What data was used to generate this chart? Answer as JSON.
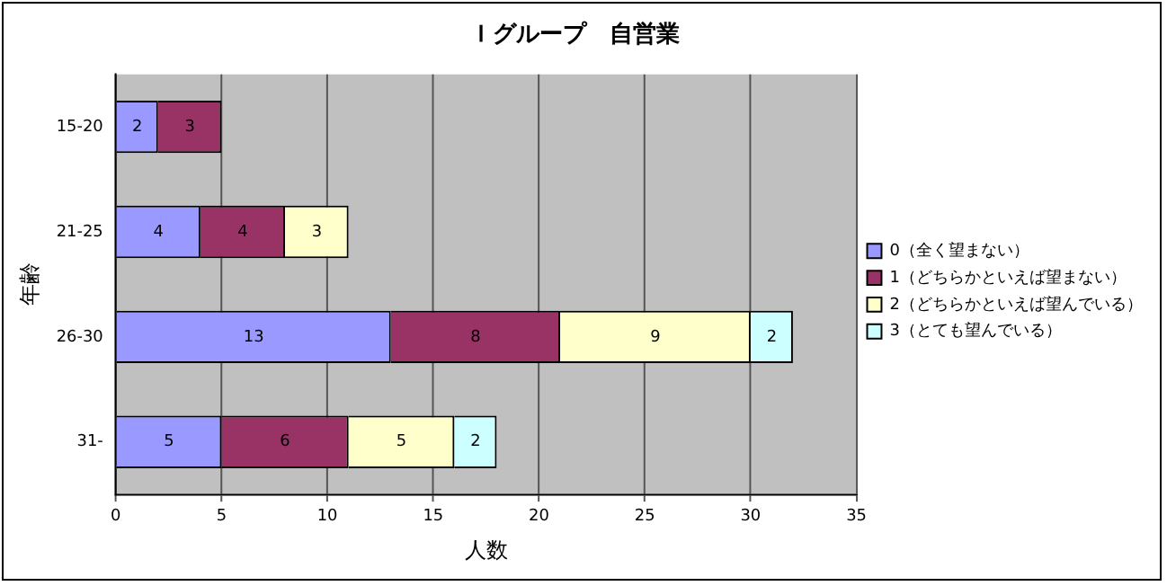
{
  "chart_data": {
    "type": "bar",
    "orientation": "horizontal",
    "stacked": true,
    "title": "Ｉグループ　自営業",
    "xlabel": "人数",
    "ylabel": "年齢",
    "categories": [
      "15-20",
      "21-25",
      "26-30",
      "31-"
    ],
    "series": [
      {
        "name": "0（全く望まない）",
        "color": "#9999ff",
        "values": [
          2,
          4,
          13,
          5
        ]
      },
      {
        "name": "1（どちらかといえば望まない）",
        "color": "#993366",
        "values": [
          3,
          4,
          8,
          6
        ]
      },
      {
        "name": "2（どちらかといえば望んでいる）",
        "color": "#ffffcc",
        "values": [
          null,
          3,
          9,
          5
        ]
      },
      {
        "name": "3（とても望んでいる）",
        "color": "#ccffff",
        "values": [
          null,
          null,
          2,
          2
        ]
      }
    ],
    "xlim": [
      0,
      35
    ],
    "xticks": [
      0,
      5,
      10,
      15,
      20,
      25,
      30,
      35
    ],
    "grid": "x",
    "legend": "right",
    "data_labels": true
  }
}
